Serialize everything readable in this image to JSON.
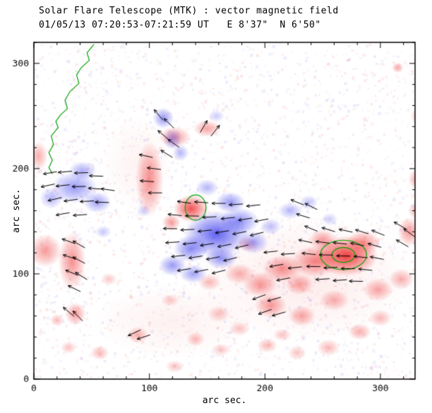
{
  "chart_data": {
    "type": "heatmap",
    "title": "Solar Flare Telescope (MTK) : vector magnetic field",
    "subtitle": "01/05/13 07:20:53-07:21:59 UT   E 8'37\"  N 6'50\"",
    "xlabel": "arc sec.",
    "ylabel": "arc sec.",
    "xlim": [
      0,
      330
    ],
    "ylim": [
      0,
      320
    ],
    "xticks": [
      0,
      100,
      200,
      300
    ],
    "yticks": [
      0,
      100,
      200,
      300
    ],
    "minor_tick": 20,
    "vector_length_arcsec": 12,
    "colors": {
      "positive": "#ee3333",
      "negative": "#4444ee",
      "contour": "#00a000",
      "vector": "#000000",
      "axis": "#000000"
    },
    "noise": {
      "seed": 11,
      "count": 2800
    },
    "blob_format": "x,y,rx,ry,alpha,polarity(1=red positive,-1=blue negative)",
    "blobs": [
      [
        235,
        95,
        95,
        60,
        0.1,
        1
      ],
      [
        120,
        55,
        70,
        35,
        0.07,
        1
      ],
      [
        90,
        205,
        30,
        45,
        0.06,
        1
      ],
      [
        10,
        122,
        14,
        16,
        0.5,
        1
      ],
      [
        33,
        112,
        12,
        28,
        0.55,
        1
      ],
      [
        36,
        62,
        9,
        11,
        0.5,
        1
      ],
      [
        20,
        56,
        6,
        6,
        0.35,
        1
      ],
      [
        4,
        212,
        8,
        14,
        0.4,
        1
      ],
      [
        100,
        190,
        12,
        36,
        0.55,
        1
      ],
      [
        122,
        230,
        14,
        10,
        0.5,
        1
      ],
      [
        150,
        238,
        12,
        8,
        0.45,
        1
      ],
      [
        136,
        162,
        15,
        13,
        0.85,
        1
      ],
      [
        119,
        149,
        8,
        8,
        0.5,
        1
      ],
      [
        270,
        117,
        28,
        19,
        0.95,
        1
      ],
      [
        243,
        112,
        20,
        15,
        0.6,
        1
      ],
      [
        215,
        105,
        17,
        13,
        0.55,
        1
      ],
      [
        196,
        90,
        15,
        12,
        0.5,
        1
      ],
      [
        178,
        100,
        13,
        10,
        0.4,
        1
      ],
      [
        205,
        70,
        14,
        12,
        0.5,
        1
      ],
      [
        232,
        60,
        12,
        10,
        0.45,
        1
      ],
      [
        260,
        75,
        13,
        10,
        0.4,
        1
      ],
      [
        298,
        85,
        13,
        11,
        0.45,
        1
      ],
      [
        318,
        95,
        11,
        10,
        0.4,
        1
      ],
      [
        325,
        140,
        10,
        14,
        0.5,
        1
      ],
      [
        331,
        190,
        7,
        10,
        0.4,
        1
      ],
      [
        300,
        58,
        10,
        8,
        0.35,
        1
      ],
      [
        282,
        45,
        10,
        8,
        0.4,
        1
      ],
      [
        255,
        30,
        10,
        8,
        0.35,
        1
      ],
      [
        228,
        25,
        8,
        7,
        0.3,
        1
      ],
      [
        202,
        32,
        9,
        7,
        0.35,
        1
      ],
      [
        162,
        28,
        8,
        6,
        0.3,
        1
      ],
      [
        140,
        38,
        8,
        7,
        0.35,
        1
      ],
      [
        122,
        12,
        8,
        6,
        0.3,
        1
      ],
      [
        90,
        42,
        9,
        8,
        0.4,
        1
      ],
      [
        57,
        25,
        8,
        7,
        0.35,
        1
      ],
      [
        30,
        30,
        7,
        6,
        0.3,
        1
      ],
      [
        160,
        62,
        10,
        8,
        0.3,
        1
      ],
      [
        178,
        48,
        9,
        7,
        0.3,
        1
      ],
      [
        315,
        296,
        5,
        5,
        0.45,
        1
      ],
      [
        285,
        130,
        15,
        11,
        0.55,
        1
      ],
      [
        250,
        132,
        12,
        10,
        0.5,
        1
      ],
      [
        230,
        90,
        12,
        10,
        0.45,
        1
      ],
      [
        152,
        92,
        10,
        8,
        0.35,
        1
      ],
      [
        185,
        128,
        9,
        7,
        0.35,
        1
      ],
      [
        65,
        95,
        7,
        6,
        0.28,
        1
      ],
      [
        118,
        75,
        8,
        6,
        0.28,
        1
      ],
      [
        215,
        42,
        8,
        6,
        0.3,
        1
      ],
      [
        332,
        250,
        6,
        8,
        0.3,
        1
      ],
      [
        330,
        160,
        6,
        8,
        0.35,
        1
      ],
      [
        35,
        182,
        20,
        15,
        0.55,
        -1
      ],
      [
        15,
        172,
        10,
        10,
        0.4,
        -1
      ],
      [
        55,
        168,
        12,
        10,
        0.5,
        -1
      ],
      [
        42,
        198,
        12,
        9,
        0.45,
        -1
      ],
      [
        60,
        140,
        7,
        6,
        0.3,
        -1
      ],
      [
        158,
        138,
        28,
        22,
        0.85,
        -1
      ],
      [
        136,
        124,
        15,
        13,
        0.65,
        -1
      ],
      [
        178,
        150,
        17,
        13,
        0.6,
        -1
      ],
      [
        190,
        130,
        13,
        11,
        0.5,
        -1
      ],
      [
        170,
        168,
        13,
        10,
        0.55,
        -1
      ],
      [
        120,
        108,
        12,
        10,
        0.55,
        -1
      ],
      [
        138,
        100,
        12,
        9,
        0.5,
        -1
      ],
      [
        162,
        115,
        14,
        10,
        0.6,
        -1
      ],
      [
        150,
        182,
        10,
        8,
        0.4,
        -1
      ],
      [
        205,
        145,
        9,
        8,
        0.35,
        -1
      ],
      [
        112,
        248,
        9,
        10,
        0.55,
        -1
      ],
      [
        120,
        228,
        8,
        10,
        0.45,
        -1
      ],
      [
        127,
        215,
        7,
        8,
        0.4,
        -1
      ],
      [
        222,
        160,
        11,
        8,
        0.38,
        -1
      ],
      [
        238,
        168,
        8,
        7,
        0.32,
        -1
      ],
      [
        256,
        152,
        7,
        6,
        0.28,
        -1
      ],
      [
        158,
        250,
        7,
        6,
        0.28,
        -1
      ],
      [
        95,
        160,
        6,
        6,
        0.28,
        -1
      ]
    ],
    "vector_format": "x,y,angle_deg_ccw_from_east",
    "vectors": [
      [
        14,
        196,
        190
      ],
      [
        27,
        197,
        185
      ],
      [
        41,
        196,
        182
      ],
      [
        54,
        193,
        178
      ],
      [
        12,
        184,
        192
      ],
      [
        25,
        184,
        186
      ],
      [
        39,
        183,
        181
      ],
      [
        53,
        181,
        176
      ],
      [
        64,
        180,
        172
      ],
      [
        18,
        171,
        193
      ],
      [
        32,
        170,
        188
      ],
      [
        46,
        169,
        183
      ],
      [
        59,
        168,
        178
      ],
      [
        25,
        157,
        190
      ],
      [
        40,
        156,
        184
      ],
      [
        30,
        131,
        160
      ],
      [
        39,
        128,
        150
      ],
      [
        31,
        116,
        162
      ],
      [
        39,
        113,
        152
      ],
      [
        33,
        101,
        158
      ],
      [
        41,
        98,
        148
      ],
      [
        35,
        86,
        154
      ],
      [
        30,
        64,
        140
      ],
      [
        38,
        60,
        134
      ],
      [
        87,
        44,
        205
      ],
      [
        95,
        40,
        198
      ],
      [
        108,
        251,
        130
      ],
      [
        117,
        243,
        136
      ],
      [
        112,
        232,
        140
      ],
      [
        121,
        224,
        144
      ],
      [
        115,
        214,
        148
      ],
      [
        147,
        240,
        60
      ],
      [
        157,
        236,
        52
      ],
      [
        130,
        168,
        172
      ],
      [
        145,
        168,
        176
      ],
      [
        160,
        167,
        180
      ],
      [
        175,
        166,
        184
      ],
      [
        190,
        165,
        186
      ],
      [
        122,
        156,
        174
      ],
      [
        137,
        155,
        179
      ],
      [
        152,
        154,
        183
      ],
      [
        168,
        153,
        186
      ],
      [
        183,
        152,
        189
      ],
      [
        197,
        151,
        191
      ],
      [
        118,
        143,
        179
      ],
      [
        133,
        142,
        183
      ],
      [
        148,
        141,
        186
      ],
      [
        163,
        140,
        189
      ],
      [
        178,
        139,
        191
      ],
      [
        193,
        138,
        194
      ],
      [
        120,
        130,
        184
      ],
      [
        135,
        129,
        186
      ],
      [
        150,
        128,
        189
      ],
      [
        165,
        127,
        191
      ],
      [
        180,
        126,
        194
      ],
      [
        125,
        117,
        186
      ],
      [
        140,
        116,
        189
      ],
      [
        155,
        115,
        191
      ],
      [
        170,
        114,
        194
      ],
      [
        130,
        104,
        189
      ],
      [
        145,
        103,
        191
      ],
      [
        160,
        102,
        194
      ],
      [
        97,
        212,
        168
      ],
      [
        104,
        200,
        173
      ],
      [
        98,
        188,
        176
      ],
      [
        105,
        177,
        180
      ],
      [
        205,
        121,
        186
      ],
      [
        220,
        119,
        184
      ],
      [
        210,
        108,
        190
      ],
      [
        226,
        106,
        186
      ],
      [
        216,
        95,
        191
      ],
      [
        240,
        143,
        158
      ],
      [
        255,
        142,
        163
      ],
      [
        270,
        141,
        168
      ],
      [
        284,
        140,
        163
      ],
      [
        298,
        139,
        158
      ],
      [
        235,
        131,
        168
      ],
      [
        250,
        130,
        173
      ],
      [
        265,
        129,
        174
      ],
      [
        280,
        128,
        169
      ],
      [
        295,
        127,
        164
      ],
      [
        238,
        119,
        174
      ],
      [
        253,
        118,
        179
      ],
      [
        268,
        117,
        179
      ],
      [
        283,
        116,
        174
      ],
      [
        297,
        115,
        169
      ],
      [
        242,
        107,
        179
      ],
      [
        257,
        106,
        183
      ],
      [
        272,
        105,
        179
      ],
      [
        287,
        104,
        174
      ],
      [
        250,
        95,
        184
      ],
      [
        265,
        94,
        184
      ],
      [
        279,
        93,
        179
      ],
      [
        195,
        78,
        200
      ],
      [
        208,
        76,
        196
      ],
      [
        200,
        64,
        200
      ],
      [
        212,
        62,
        196
      ],
      [
        228,
        168,
        158
      ],
      [
        240,
        164,
        154
      ],
      [
        233,
        155,
        163
      ],
      [
        317,
        146,
        150
      ],
      [
        325,
        139,
        144
      ],
      [
        319,
        129,
        150
      ]
    ],
    "contours": {
      "open_paths": [
        [
          [
            52,
            318
          ],
          [
            46,
            310
          ],
          [
            48,
            303
          ],
          [
            41,
            296
          ],
          [
            37,
            289
          ],
          [
            39,
            281
          ],
          [
            31,
            273
          ],
          [
            27,
            265
          ],
          [
            29,
            257
          ],
          [
            23,
            251
          ],
          [
            19,
            245
          ],
          [
            21,
            239
          ],
          [
            15,
            231
          ],
          [
            17,
            223
          ],
          [
            13,
            215
          ],
          [
            16,
            208
          ],
          [
            13,
            201
          ],
          [
            16,
            195
          ]
        ]
      ],
      "ellipses": [
        [
          268,
          118,
          20,
          14
        ],
        [
          268,
          118,
          10,
          7
        ],
        [
          140,
          163,
          9,
          12
        ]
      ]
    }
  }
}
